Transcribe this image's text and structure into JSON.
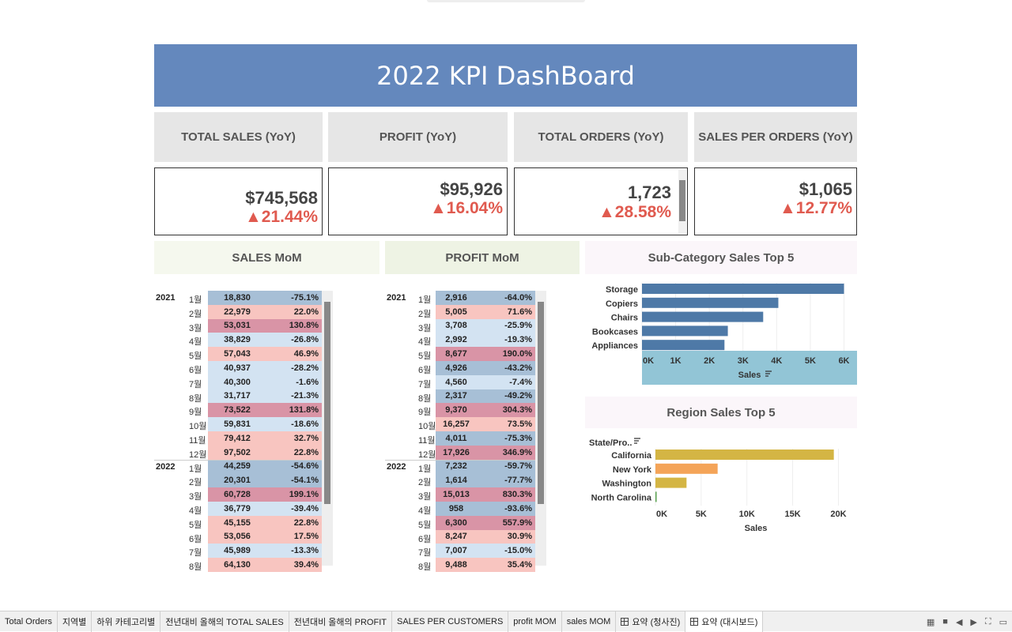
{
  "title": "2022 KPI DashBoard",
  "kpis": [
    {
      "head": "TOTAL SALES (YoY)",
      "value": "$745,568",
      "change": "▲21.44%"
    },
    {
      "head": "PROFIT (YoY)",
      "value": "$95,926",
      "change": "▲16.04%"
    },
    {
      "head": "TOTAL ORDERS (YoY)",
      "value": "1,723",
      "change": "▲28.58%"
    },
    {
      "head": "SALES PER ORDERS (YoY)",
      "value": "$1,065",
      "change": "▲12.77%"
    }
  ],
  "sections": {
    "sales_mom": "SALES MoM",
    "profit_mom": "PROFIT MoM",
    "subcat": "Sub-Category Sales Top 5",
    "region": "Region Sales Top 5"
  },
  "sales_mom": {
    "rows": [
      {
        "year": "2021",
        "month": "1월",
        "value": "18,830",
        "pct": "-75.1%"
      },
      {
        "year": "",
        "month": "2월",
        "value": "22,979",
        "pct": "22.0%"
      },
      {
        "year": "",
        "month": "3월",
        "value": "53,031",
        "pct": "130.8%"
      },
      {
        "year": "",
        "month": "4월",
        "value": "38,829",
        "pct": "-26.8%"
      },
      {
        "year": "",
        "month": "5월",
        "value": "57,043",
        "pct": "46.9%"
      },
      {
        "year": "",
        "month": "6월",
        "value": "40,937",
        "pct": "-28.2%"
      },
      {
        "year": "",
        "month": "7월",
        "value": "40,300",
        "pct": "-1.6%"
      },
      {
        "year": "",
        "month": "8월",
        "value": "31,717",
        "pct": "-21.3%"
      },
      {
        "year": "",
        "month": "9월",
        "value": "73,522",
        "pct": "131.8%"
      },
      {
        "year": "",
        "month": "10월",
        "value": "59,831",
        "pct": "-18.6%"
      },
      {
        "year": "",
        "month": "11월",
        "value": "79,412",
        "pct": "32.7%"
      },
      {
        "year": "",
        "month": "12월",
        "value": "97,502",
        "pct": "22.8%"
      },
      {
        "year": "2022",
        "month": "1월",
        "value": "44,259",
        "pct": "-54.6%"
      },
      {
        "year": "",
        "month": "2월",
        "value": "20,301",
        "pct": "-54.1%"
      },
      {
        "year": "",
        "month": "3월",
        "value": "60,728",
        "pct": "199.1%"
      },
      {
        "year": "",
        "month": "4월",
        "value": "36,779",
        "pct": "-39.4%"
      },
      {
        "year": "",
        "month": "5월",
        "value": "45,155",
        "pct": "22.8%"
      },
      {
        "year": "",
        "month": "6월",
        "value": "53,056",
        "pct": "17.5%"
      },
      {
        "year": "",
        "month": "7월",
        "value": "45,989",
        "pct": "-13.3%"
      },
      {
        "year": "",
        "month": "8월",
        "value": "64,130",
        "pct": "39.4%"
      }
    ]
  },
  "profit_mom": {
    "rows": [
      {
        "year": "2021",
        "month": "1월",
        "value": "2,916",
        "pct": "-64.0%"
      },
      {
        "year": "",
        "month": "2월",
        "value": "5,005",
        "pct": "71.6%"
      },
      {
        "year": "",
        "month": "3월",
        "value": "3,708",
        "pct": "-25.9%"
      },
      {
        "year": "",
        "month": "4월",
        "value": "2,992",
        "pct": "-19.3%"
      },
      {
        "year": "",
        "month": "5월",
        "value": "8,677",
        "pct": "190.0%"
      },
      {
        "year": "",
        "month": "6월",
        "value": "4,926",
        "pct": "-43.2%"
      },
      {
        "year": "",
        "month": "7월",
        "value": "4,560",
        "pct": "-7.4%"
      },
      {
        "year": "",
        "month": "8월",
        "value": "2,317",
        "pct": "-49.2%"
      },
      {
        "year": "",
        "month": "9월",
        "value": "9,370",
        "pct": "304.3%"
      },
      {
        "year": "",
        "month": "10월",
        "value": "16,257",
        "pct": "73.5%"
      },
      {
        "year": "",
        "month": "11월",
        "value": "4,011",
        "pct": "-75.3%"
      },
      {
        "year": "",
        "month": "12월",
        "value": "17,926",
        "pct": "346.9%"
      },
      {
        "year": "2022",
        "month": "1월",
        "value": "7,232",
        "pct": "-59.7%"
      },
      {
        "year": "",
        "month": "2월",
        "value": "1,614",
        "pct": "-77.7%"
      },
      {
        "year": "",
        "month": "3월",
        "value": "15,013",
        "pct": "830.3%"
      },
      {
        "year": "",
        "month": "4월",
        "value": "958",
        "pct": "-93.6%"
      },
      {
        "year": "",
        "month": "5월",
        "value": "6,300",
        "pct": "557.9%"
      },
      {
        "year": "",
        "month": "6월",
        "value": "8,247",
        "pct": "30.9%"
      },
      {
        "year": "",
        "month": "7월",
        "value": "7,007",
        "pct": "-15.0%"
      },
      {
        "year": "",
        "month": "8월",
        "value": "9,488",
        "pct": "35.4%"
      }
    ]
  },
  "chart_data": [
    {
      "type": "bar",
      "orientation": "horizontal",
      "title": "Sub-Category Sales Top 5",
      "categories": [
        "Storage",
        "Copiers",
        "Chairs",
        "Bookcases",
        "Appliances"
      ],
      "values": [
        6000,
        4050,
        3600,
        2550,
        2450
      ],
      "xlabel": "Sales",
      "xlim": [
        0,
        6200
      ],
      "ticks": [
        "0K",
        "1K",
        "2K",
        "3K",
        "4K",
        "5K",
        "6K"
      ],
      "color": "#4e79a7"
    },
    {
      "type": "bar",
      "orientation": "horizontal",
      "title": "Region Sales Top 5",
      "categories": [
        "California",
        "New York",
        "Washington",
        "North Carolina"
      ],
      "values": [
        19500,
        6800,
        3400,
        100
      ],
      "xlabel": "Sales",
      "ylabel": "State/Pro..",
      "xlim": [
        0,
        21000
      ],
      "ticks": [
        "0K",
        "5K",
        "10K",
        "15K",
        "20K"
      ],
      "colors": [
        "#d4b544",
        "#f4a458",
        "#d4b544",
        "#59a14f"
      ]
    }
  ],
  "tabs": [
    {
      "label": "Total Orders"
    },
    {
      "label": "지역별"
    },
    {
      "label": "하위 카테고리별"
    },
    {
      "label": "전년대비 올해의 TOTAL SALES"
    },
    {
      "label": "전년대비 올해의 PROFIT"
    },
    {
      "label": "SALES PER CUSTOMERS"
    },
    {
      "label": "profit MOM"
    },
    {
      "label": "sales MOM"
    },
    {
      "label": "요약 (청사진)",
      "icon": "grid"
    },
    {
      "label": "요약 (대시보드)",
      "icon": "grid",
      "active": true
    }
  ],
  "colors": {
    "banner": "#6488bd",
    "negative_strong": "#a7bfd6",
    "negative_light": "#d3e3f2",
    "positive_strong": "#d994a6",
    "positive_light": "#f8c5c0"
  }
}
